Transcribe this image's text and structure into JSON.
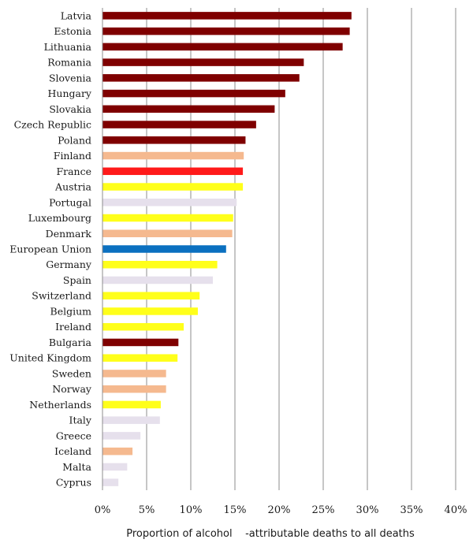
{
  "chart_data": {
    "type": "bar",
    "orientation": "horizontal",
    "title": "",
    "xlabel": "Proportion of alcohol    -attributable deaths to all deaths",
    "ylabel": "",
    "xlim": [
      0,
      40
    ],
    "x_ticks": [
      0,
      5,
      10,
      15,
      20,
      25,
      30,
      35,
      40
    ],
    "x_tick_labels": [
      "0%",
      "5%",
      "10%",
      "15%",
      "20%",
      "25%",
      "30%",
      "35%",
      "40%"
    ],
    "grid": "vertical",
    "legend": "none",
    "categories": [
      "Latvia",
      "Estonia",
      "Lithuania",
      "Romania",
      "Slovenia",
      "Hungary",
      "Slovakia",
      "Czech Republic",
      "Poland",
      "Finland",
      "France",
      "Austria",
      "Portugal",
      "Luxembourg",
      "Denmark",
      "European Union",
      "Germany",
      "Spain",
      "Switzerland",
      "Belgium",
      "Ireland",
      "Bulgaria",
      "United Kingdom",
      "Sweden",
      "Norway",
      "Netherlands",
      "Italy",
      "Greece",
      "Iceland",
      "Malta",
      "Cyprus"
    ],
    "values": [
      28.2,
      28.0,
      27.2,
      22.8,
      22.3,
      20.7,
      19.5,
      17.4,
      16.2,
      16.0,
      15.9,
      15.9,
      15.2,
      14.8,
      14.7,
      14.0,
      13.0,
      12.5,
      11.0,
      10.8,
      9.2,
      8.6,
      8.5,
      7.2,
      7.2,
      6.6,
      6.5,
      4.3,
      3.4,
      2.8,
      1.8
    ],
    "bar_colors": [
      "#7f0000",
      "#7f0000",
      "#7f0000",
      "#7f0000",
      "#7f0000",
      "#7f0000",
      "#7f0000",
      "#7f0000",
      "#7f0000",
      "#f5b98f",
      "#ff1a1a",
      "#ffff1a",
      "#e6e0ec",
      "#ffff1a",
      "#f5b98f",
      "#0b70c0",
      "#ffff1a",
      "#e6e0ec",
      "#ffff1a",
      "#ffff1a",
      "#ffff1a",
      "#7f0000",
      "#ffff1a",
      "#f5b98f",
      "#f5b98f",
      "#ffff1a",
      "#e6e0ec",
      "#e6e0ec",
      "#f5b98f",
      "#e6e0ec",
      "#e6e0ec"
    ]
  }
}
